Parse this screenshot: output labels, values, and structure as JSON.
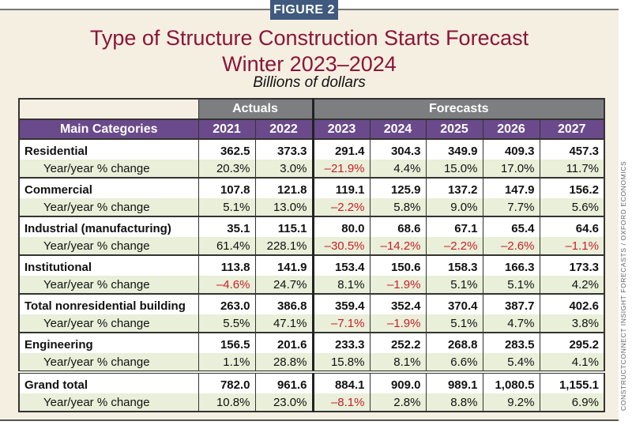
{
  "figure_label": "FIGURE 2",
  "title_line1": "Type of Structure Construction Starts Forecast",
  "title_line2": "Winter 2023–2024",
  "subtitle": "Billions of dollars",
  "credit": "CONSTRUCTCONNECT INSIGHT FORECASTS / OXFORD ECONOMICS",
  "colors": {
    "badge": "#3f5a7e",
    "title": "#8b1538",
    "header": "#6a4a8a",
    "group_header": "#7d7e80",
    "yoy_row": "#e9efd8",
    "negative": "#c8202a",
    "background": "#f5efe2"
  },
  "chart_data": {
    "type": "table",
    "column_groups": [
      {
        "label": "Actuals",
        "span": 2
      },
      {
        "label": "Forecasts",
        "span": 5
      }
    ],
    "header": [
      "Main Categories",
      "2021",
      "2022",
      "2023",
      "2024",
      "2025",
      "2026",
      "2027"
    ],
    "yoy_label": "Year/year % change",
    "rows": [
      {
        "category": "Residential",
        "values": [
          "362.5",
          "373.3",
          "291.4",
          "304.3",
          "349.9",
          "409.3",
          "457.3"
        ],
        "yoy": [
          "20.3%",
          "3.0%",
          "–21.9%",
          "4.4%",
          "15.0%",
          "17.0%",
          "11.7%"
        ]
      },
      {
        "category": "Commercial",
        "values": [
          "107.8",
          "121.8",
          "119.1",
          "125.9",
          "137.2",
          "147.9",
          "156.2"
        ],
        "yoy": [
          "5.1%",
          "13.0%",
          "–2.2%",
          "5.8%",
          "9.0%",
          "7.7%",
          "5.6%"
        ]
      },
      {
        "category": "Industrial (manufacturing)",
        "values": [
          "35.1",
          "115.1",
          "80.0",
          "68.6",
          "67.1",
          "65.4",
          "64.6"
        ],
        "yoy": [
          "61.4%",
          "228.1%",
          "–30.5%",
          "–14.2%",
          "–2.2%",
          "–2.6%",
          "–1.1%"
        ]
      },
      {
        "category": "Institutional",
        "values": [
          "113.8",
          "141.9",
          "153.4",
          "150.6",
          "158.3",
          "166.3",
          "173.3"
        ],
        "yoy": [
          "–4.6%",
          "24.7%",
          "8.1%",
          "–1.9%",
          "5.1%",
          "5.1%",
          "4.2%"
        ]
      },
      {
        "category": "Total nonresidential building",
        "values": [
          "263.0",
          "386.8",
          "359.4",
          "352.4",
          "370.4",
          "387.7",
          "402.6"
        ],
        "yoy": [
          "5.5%",
          "47.1%",
          "–7.1%",
          "–1.9%",
          "5.1%",
          "4.7%",
          "3.8%"
        ]
      },
      {
        "category": "Engineering",
        "values": [
          "156.5",
          "201.6",
          "233.3",
          "252.2",
          "268.8",
          "283.5",
          "295.2"
        ],
        "yoy": [
          "1.1%",
          "28.8%",
          "15.8%",
          "8.1%",
          "6.6%",
          "5.4%",
          "4.1%"
        ]
      },
      {
        "category": "Grand total",
        "values": [
          "782.0",
          "961.6",
          "884.1",
          "909.0",
          "989.1",
          "1,080.5",
          "1,155.1"
        ],
        "yoy": [
          "10.8%",
          "23.0%",
          "–8.1%",
          "2.8%",
          "8.8%",
          "9.2%",
          "6.9%"
        ]
      }
    ]
  }
}
